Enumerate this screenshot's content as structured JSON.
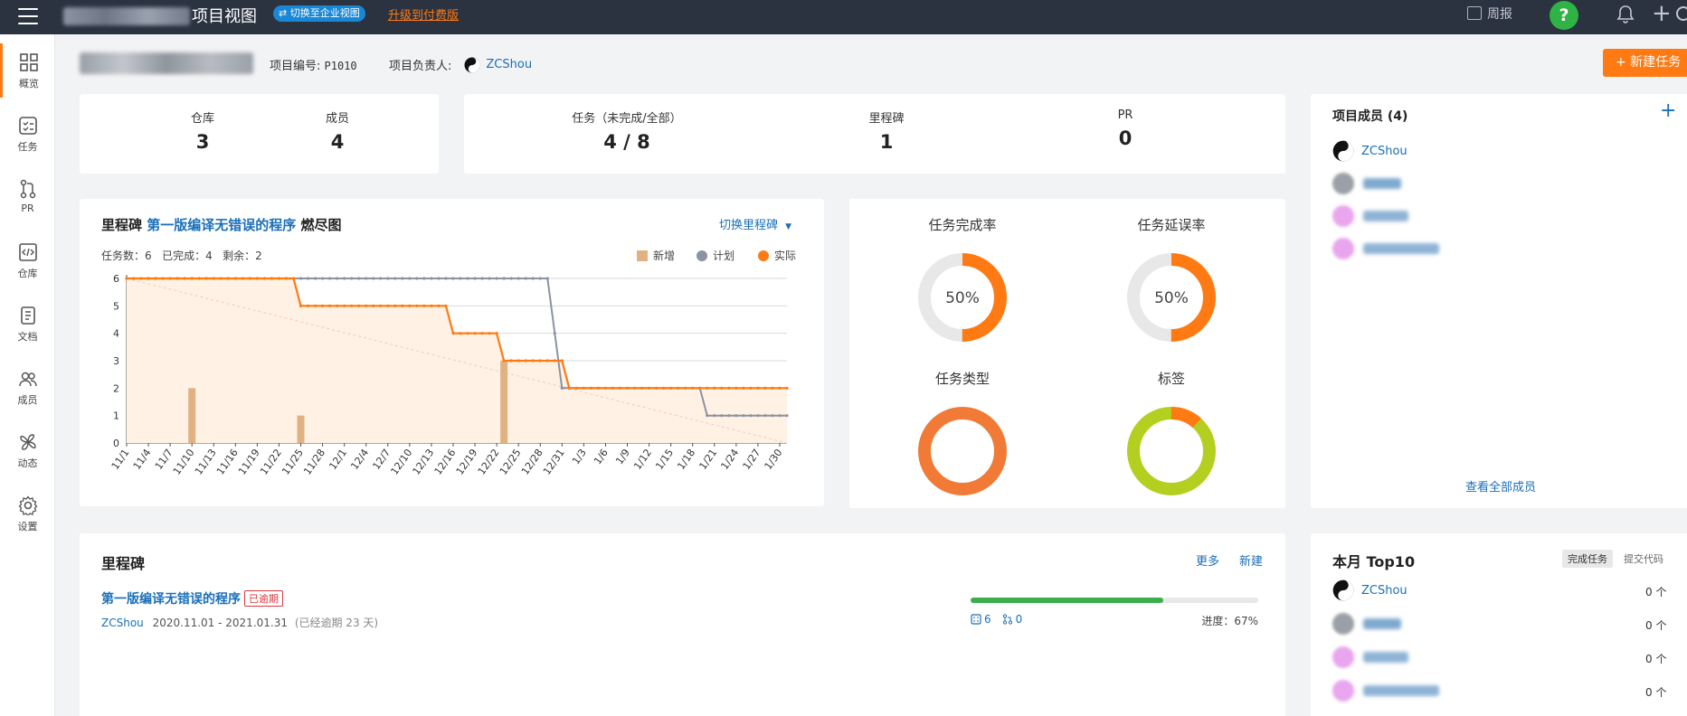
{
  "topbar": {
    "view_title": "项目视图",
    "switch_label": "⇄ 切换至企业视图",
    "upgrade_label": "升级到付费版",
    "weekly_label": "周报",
    "help_label": "?"
  },
  "sidebar": {
    "items": [
      {
        "label": "概览"
      },
      {
        "label": "任务"
      },
      {
        "label": "PR"
      },
      {
        "label": "仓库"
      },
      {
        "label": "文档"
      },
      {
        "label": "成员"
      },
      {
        "label": "动态"
      },
      {
        "label": "设置"
      }
    ]
  },
  "header": {
    "project_no_label": "项目编号:",
    "project_no": "P1010",
    "owner_label": "项目负责人:",
    "owner": "ZCShou",
    "new_task": "+ 新建任务"
  },
  "stats_left": {
    "repo_label": "仓库",
    "repo_value": "3",
    "member_label": "成员",
    "member_value": "4"
  },
  "stats_mid": {
    "task_label": "任务（未完成/全部）",
    "task_value": "4 / 8",
    "milestone_label": "里程碑",
    "milestone_value": "1",
    "pr_label": "PR",
    "pr_value": "0"
  },
  "members_panel": {
    "title": "项目成员 (4)",
    "members": [
      {
        "name": "ZCShou"
      }
    ],
    "view_all": "查看全部成员"
  },
  "burndown": {
    "title_prefix": "里程碑",
    "milestone_name": "第一版编译无错误的程序",
    "title_suffix": "燃尽图",
    "switch_label": "切换里程碑",
    "summary": "任务数：6   已完成：4   剩余：2",
    "legend": {
      "added": "新增",
      "plan": "计划",
      "actual": "实际"
    }
  },
  "chart_data": {
    "type": "line",
    "title": "燃尽图",
    "x_labels": [
      "11/1",
      "11/4",
      "11/7",
      "11/10",
      "11/13",
      "11/16",
      "11/19",
      "11/22",
      "11/25",
      "11/28",
      "12/1",
      "12/4",
      "12/7",
      "12/10",
      "12/13",
      "12/16",
      "12/19",
      "12/22",
      "12/25",
      "12/28",
      "12/31",
      "1/3",
      "1/6",
      "1/9",
      "1/12",
      "1/15",
      "1/18",
      "1/21",
      "1/24",
      "1/27",
      "1/30"
    ],
    "ylim": [
      0,
      6
    ],
    "y_ticks": [
      0,
      1,
      2,
      3,
      4,
      5,
      6
    ],
    "series": [
      {
        "name": "计划",
        "steps": [
          [
            0,
            6
          ],
          [
            58,
            6
          ],
          [
            60,
            2
          ],
          [
            79,
            2
          ],
          [
            80,
            1
          ],
          [
            91,
            1
          ]
        ]
      },
      {
        "name": "实际",
        "steps": [
          [
            0,
            6
          ],
          [
            23,
            6
          ],
          [
            24,
            5
          ],
          [
            44,
            5
          ],
          [
            45,
            4
          ],
          [
            51,
            4
          ],
          [
            52,
            3
          ],
          [
            60,
            3
          ],
          [
            61,
            2
          ],
          [
            91,
            2
          ]
        ]
      },
      {
        "name": "新增",
        "bars": [
          [
            9,
            2
          ],
          [
            24,
            1
          ],
          [
            52,
            3
          ]
        ]
      }
    ],
    "ideal_line": [
      [
        0,
        6
      ],
      [
        91,
        0
      ]
    ]
  },
  "rates": {
    "completion_label": "任务完成率",
    "completion_value": "50%",
    "completion_frac": 0.5,
    "delay_label": "任务延误率",
    "delay_value": "50%",
    "delay_frac": 0.5,
    "type_label": "任务类型",
    "tag_label": "标签",
    "colors": {
      "orange": "#ff7a12",
      "grey": "#e8e8e8",
      "type": "#f07a36",
      "tag_green": "#b5cf21",
      "tag_orange": "#ff7a12"
    }
  },
  "milestones": {
    "title": "里程碑",
    "more": "更多",
    "new": "新建",
    "item": {
      "name": "第一版编译无错误的程序",
      "badge": "已逾期",
      "owner": "ZCShou",
      "dates": "2020.11.01 - 2021.01.31",
      "overdue": "(已经逾期 23 天)",
      "task_count": "6",
      "pr_count": "0",
      "progress_label": "进度：67%",
      "progress": 0.67
    }
  },
  "top10": {
    "title": "本月 Top10",
    "tab_done": "完成任务",
    "tab_code": "提交代码",
    "rows": [
      {
        "name": "ZCShou",
        "count": "0 个"
      },
      {
        "count": "0 个"
      },
      {
        "count": "0 个"
      },
      {
        "count": "0 个"
      }
    ]
  }
}
